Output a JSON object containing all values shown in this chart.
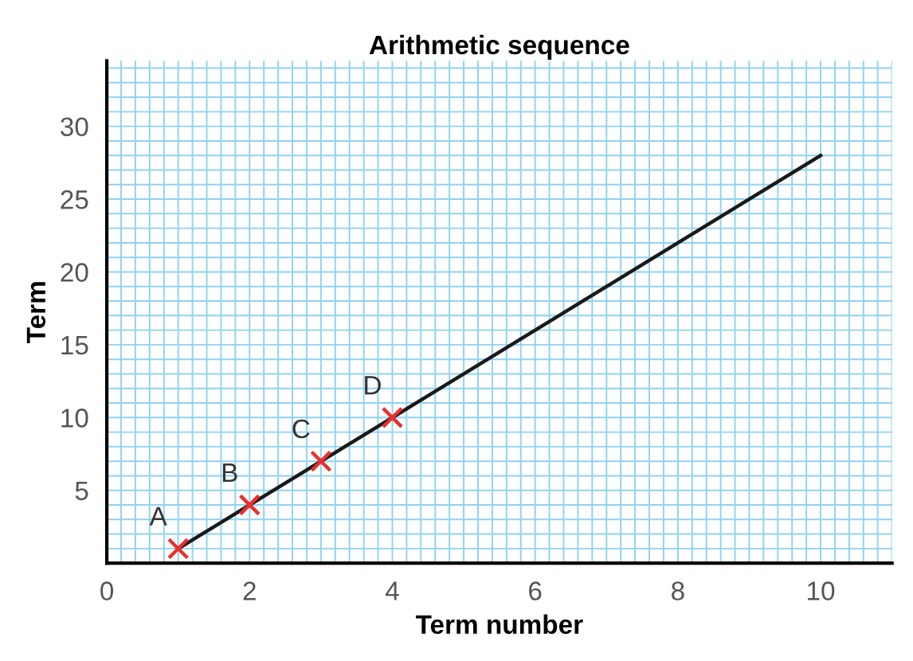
{
  "chart_data": {
    "type": "line",
    "title": "Arithmetic sequence",
    "xlabel": "Term number",
    "ylabel": "Term",
    "series": [
      {
        "color": "#1a1a1a",
        "x": [
          1,
          10
        ],
        "values": [
          1,
          28
        ],
        "marker": "none"
      },
      {
        "type": "scatter",
        "color": "#e8302c",
        "x": [
          1,
          2,
          3,
          4
        ],
        "values": [
          1,
          4,
          7,
          10
        ],
        "marker": "cross"
      }
    ],
    "annotations": [
      {
        "text": "A",
        "x": 1,
        "y": 1
      },
      {
        "text": "B",
        "x": 2,
        "y": 4
      },
      {
        "text": "C",
        "x": 3,
        "y": 7
      },
      {
        "text": "D",
        "x": 4,
        "y": 10
      }
    ],
    "xlim": [
      0,
      11
    ],
    "ylim": [
      0,
      34.5
    ],
    "xticks": [
      0,
      2,
      4,
      6,
      8,
      10
    ],
    "yticks": [
      5,
      10,
      15,
      20,
      25,
      30
    ],
    "grid": true
  }
}
